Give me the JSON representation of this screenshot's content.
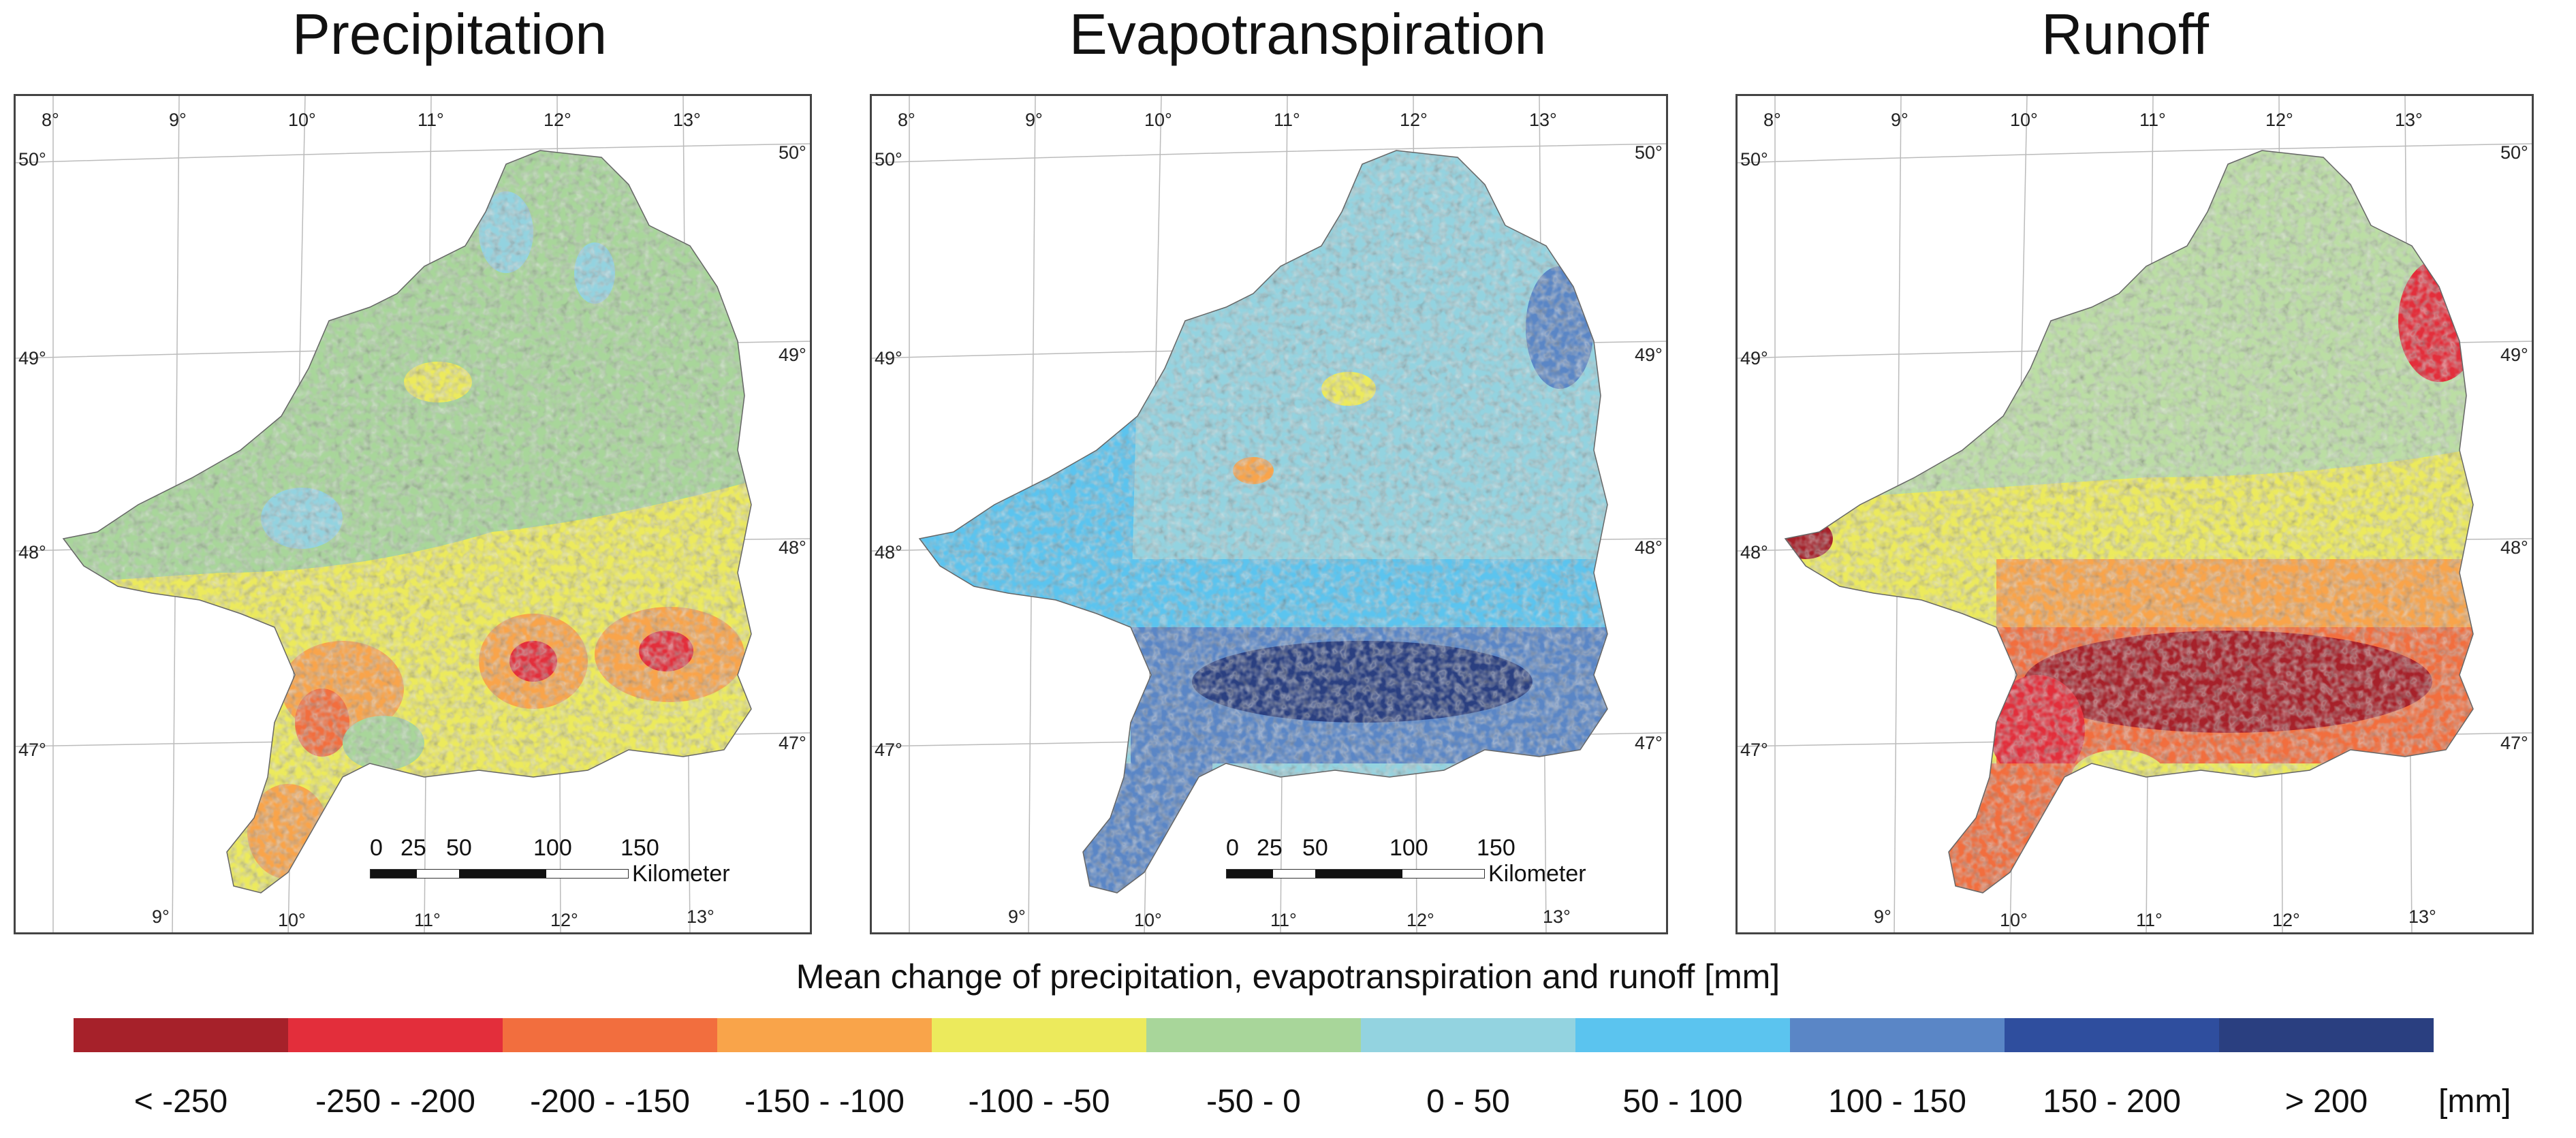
{
  "titles": {
    "precipitation": "Precipitation",
    "evapotranspiration": "Evapotranspiration",
    "runoff": "Runoff"
  },
  "lon_ticks": [
    "8°",
    "9°",
    "10°",
    "11°",
    "12°",
    "13°"
  ],
  "lat_ticks": [
    "50°",
    "49°",
    "48°",
    "47°"
  ],
  "scale": {
    "numbers": [
      "0",
      "25",
      "50",
      "100",
      "150"
    ],
    "unit": "Kilometer"
  },
  "legend": {
    "title": "Mean change of precipitation, evapotranspiration and runoff [mm]",
    "unit": "[mm]",
    "classes": [
      {
        "label": "< -250",
        "color": "#a6212a"
      },
      {
        "label": "-250 - -200",
        "color": "#e32e3b"
      },
      {
        "label": "-200 - -150",
        "color": "#f26e3e"
      },
      {
        "label": "-150 - -100",
        "color": "#f9a44a"
      },
      {
        "label": "-100 - -50",
        "color": "#ecea5c"
      },
      {
        "label": "-50 - 0",
        "color": "#a8d69a"
      },
      {
        "label": "0 - 50",
        "color": "#93d3e0"
      },
      {
        "label": "50 - 100",
        "color": "#5bc4ef"
      },
      {
        "label": "100 - 150",
        "color": "#5a86c6"
      },
      {
        "label": "150 - 200",
        "color": "#2f4e9e"
      },
      {
        "label": "> 200",
        "color": "#2a3f80"
      }
    ]
  }
}
